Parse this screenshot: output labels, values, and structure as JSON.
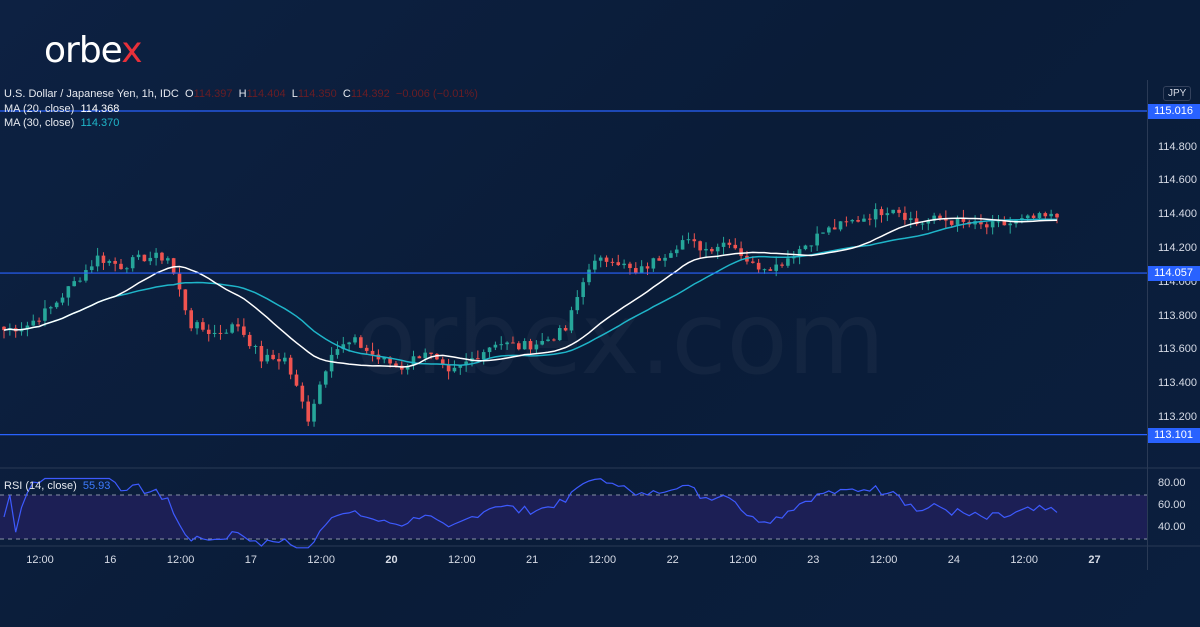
{
  "brand": {
    "logo_main": "orbe",
    "logo_accent": "x",
    "watermark": "orbex.com"
  },
  "legend": {
    "symbol": "U.S. Dollar / Japanese Yen, 1h, IDC",
    "o_label": "O",
    "o": "114.397",
    "h_label": "H",
    "h": "114.404",
    "l_label": "L",
    "l": "114.350",
    "c_label": "C",
    "c": "114.392",
    "change": "−0.006 (−0.01%)",
    "ma20_label": "MA (20, close)",
    "ma20": "114.368",
    "ma30_label": "MA (30, close)",
    "ma30": "114.370",
    "rsi_label": "RSI (14, close)",
    "rsi": "55.93"
  },
  "colors": {
    "up": "#26a69a",
    "down": "#ef5350",
    "ma20": "#ffffff",
    "ma30": "#1fb5c9",
    "level": "#2962ff",
    "rsi": "#3d5afe",
    "rsi_band": "#1c1f55"
  },
  "chart_data": {
    "type": "candlestick",
    "currency": "JPY",
    "price_ticks": [
      "114.800",
      "114.600",
      "114.400",
      "114.200",
      "114.000",
      "113.800",
      "113.600",
      "113.400",
      "113.200"
    ],
    "price_tick_values": [
      114.8,
      114.6,
      114.4,
      114.2,
      114.0,
      113.8,
      113.6,
      113.4,
      113.2
    ],
    "levels": [
      {
        "value": 115.016,
        "label": "115.016"
      },
      {
        "value": 114.057,
        "label": "114.057"
      },
      {
        "value": 113.101,
        "label": "113.101"
      }
    ],
    "rsi_ticks": [
      "80.00",
      "60.00",
      "40.00"
    ],
    "rsi_tick_values": [
      80,
      60,
      40
    ],
    "rsi_bands": [
      70,
      30
    ],
    "time_ticks": [
      {
        "label": "12:00",
        "bold": false
      },
      {
        "label": "16",
        "bold": false
      },
      {
        "label": "12:00",
        "bold": false
      },
      {
        "label": "17",
        "bold": false
      },
      {
        "label": "12:00",
        "bold": false
      },
      {
        "label": "20",
        "bold": true
      },
      {
        "label": "12:00",
        "bold": false
      },
      {
        "label": "21",
        "bold": false
      },
      {
        "label": "12:00",
        "bold": false
      },
      {
        "label": "22",
        "bold": false
      },
      {
        "label": "12:00",
        "bold": false
      },
      {
        "label": "23",
        "bold": false
      },
      {
        "label": "12:00",
        "bold": false
      },
      {
        "label": "24",
        "bold": false
      },
      {
        "label": "12:00",
        "bold": false
      },
      {
        "label": "27",
        "bold": true
      }
    ],
    "approx_closes_4h": [
      113.72,
      113.75,
      113.85,
      114.0,
      114.15,
      114.1,
      114.15,
      114.15,
      113.75,
      113.7,
      113.75,
      113.55,
      113.55,
      113.2,
      113.6,
      113.65,
      113.55,
      113.5,
      113.6,
      113.45,
      113.55,
      113.65,
      113.62,
      113.65,
      113.72,
      114.1,
      114.15,
      114.05,
      114.15,
      114.25,
      114.2,
      114.25,
      114.1,
      114.1,
      114.2,
      114.3,
      114.35,
      114.4,
      114.45,
      114.35,
      114.38,
      114.35,
      114.33,
      114.35,
      114.38,
      114.39
    ]
  }
}
